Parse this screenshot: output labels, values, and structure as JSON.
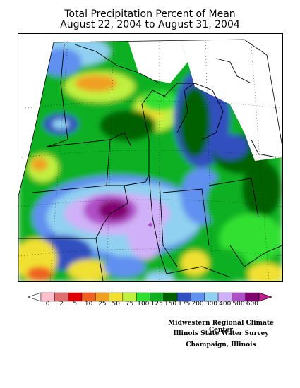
{
  "title_line1": "Total Precipitation Percent of Mean",
  "title_line2": "August 22, 2004 to August 31, 2004",
  "legend": {
    "labels": [
      "0",
      "2",
      "5",
      "10",
      "25",
      "50",
      "75",
      "100",
      "125",
      "150",
      "175",
      "200",
      "300",
      "400",
      "500",
      "600"
    ],
    "colors": [
      "#ffc0cb",
      "#e07070",
      "#e00000",
      "#f06020",
      "#f0a020",
      "#f0e030",
      "#c0f040",
      "#30e030",
      "#10b020",
      "#006000",
      "#3050c0",
      "#6090f0",
      "#90d0f0",
      "#d0b0f8",
      "#b050c8",
      "#800070",
      "#c02090"
    ]
  },
  "credits": {
    "line1": "Midwestern Regional Climate Center",
    "line2": "Illinois State Water Survey",
    "line3": "Champaign, Illinois"
  }
}
